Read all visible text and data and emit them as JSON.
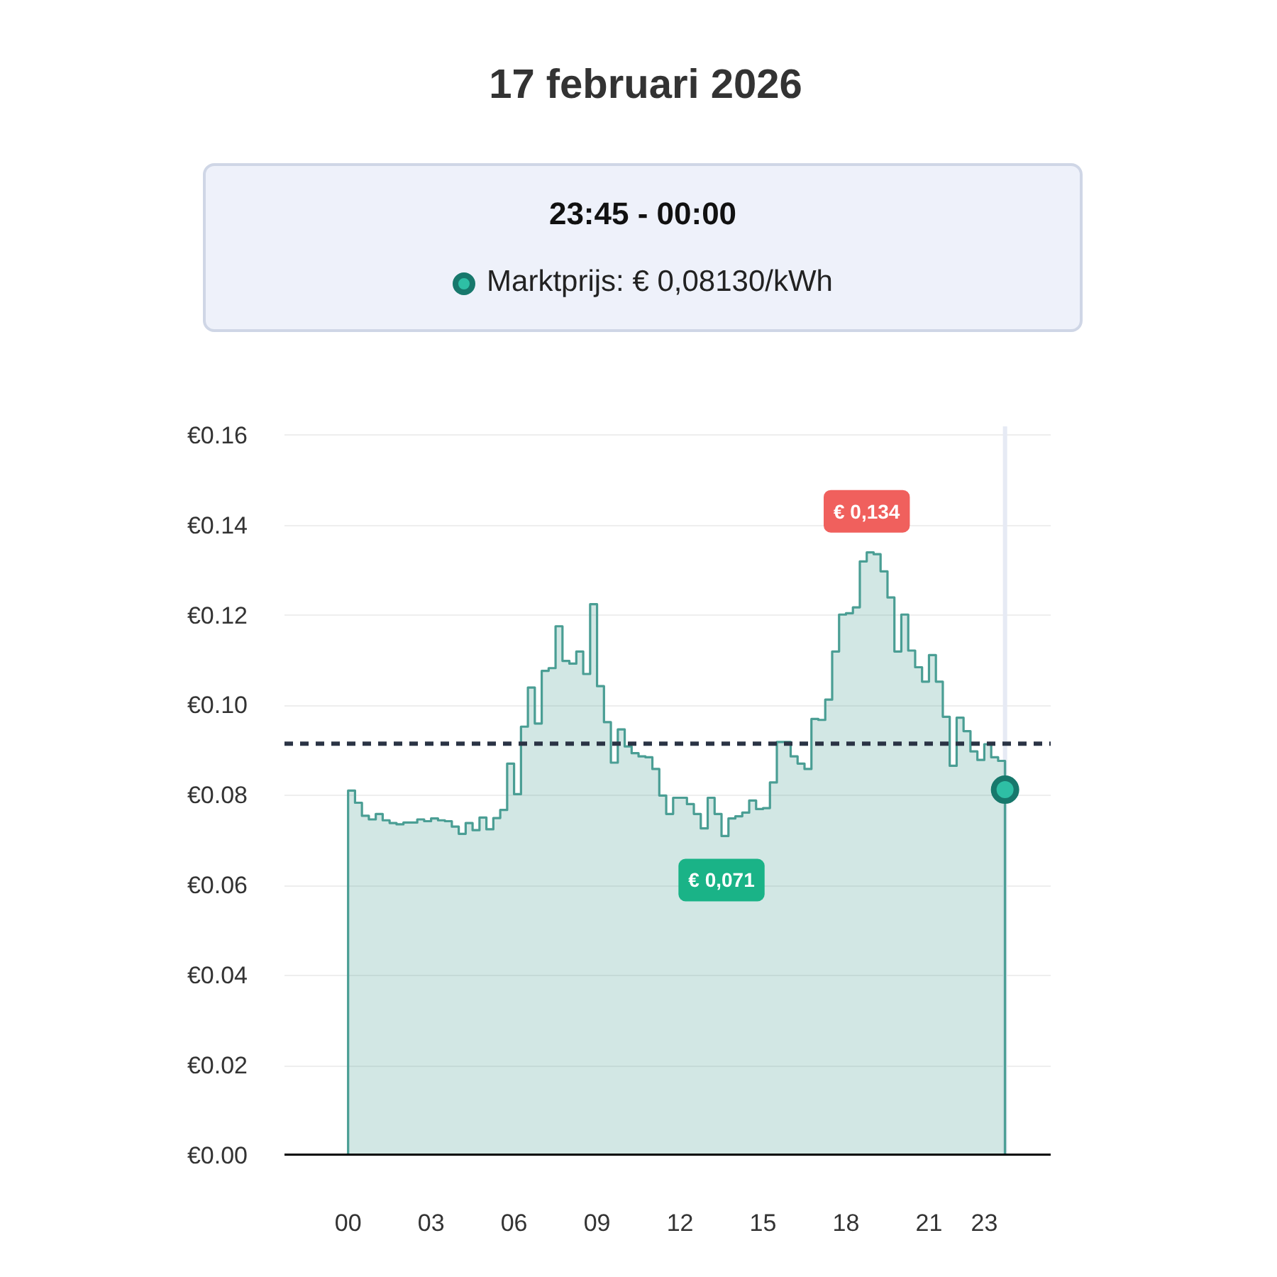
{
  "chart_data": {
    "type": "area",
    "title": "17 februari 2026",
    "subtitle": "23:45 - 00:00",
    "annotations": [
      "Marktprijs: € 0,08130/kWh",
      {
        "text": "€ 0,134",
        "x": 18.75,
        "y": 0.134
      },
      {
        "text": "€ 0,071",
        "x": 13.5,
        "y": 0.071
      }
    ],
    "x": [
      0,
      0.25,
      0.5,
      0.75,
      1,
      1.25,
      1.5,
      1.75,
      2,
      2.25,
      2.5,
      2.75,
      3,
      3.25,
      3.5,
      3.75,
      4,
      4.25,
      4.5,
      4.75,
      5,
      5.25,
      5.5,
      5.75,
      6,
      6.25,
      6.5,
      6.75,
      7,
      7.25,
      7.5,
      7.75,
      8,
      8.25,
      8.5,
      8.75,
      9,
      9.25,
      9.5,
      9.75,
      10,
      10.25,
      10.5,
      10.75,
      11,
      11.25,
      11.5,
      11.75,
      12,
      12.25,
      12.5,
      12.75,
      13,
      13.25,
      13.5,
      13.75,
      14,
      14.25,
      14.5,
      14.75,
      15,
      15.25,
      15.5,
      15.75,
      16,
      16.25,
      16.5,
      16.75,
      17,
      17.25,
      17.5,
      17.75,
      18,
      18.25,
      18.5,
      18.75,
      19,
      19.25,
      19.5,
      19.75,
      20,
      20.25,
      20.5,
      20.75,
      21,
      21.25,
      21.5,
      21.75,
      22,
      22.25,
      22.5,
      22.75,
      23,
      23.25,
      23.5,
      23.75
    ],
    "series": [
      {
        "color": "#4a9e94",
        "values": [
          0.0811,
          0.0784,
          0.0755,
          0.0747,
          0.0759,
          0.0745,
          0.0739,
          0.0736,
          0.074,
          0.074,
          0.0747,
          0.0743,
          0.0749,
          0.0745,
          0.0743,
          0.0731,
          0.0715,
          0.0739,
          0.0723,
          0.0751,
          0.0725,
          0.075,
          0.0768,
          0.0871,
          0.0803,
          0.0953,
          0.104,
          0.096,
          0.1077,
          0.1083,
          0.1176,
          0.1099,
          0.1093,
          0.112,
          0.107,
          0.1225,
          0.1043,
          0.0963,
          0.0873,
          0.0947,
          0.0909,
          0.0894,
          0.0887,
          0.0885,
          0.0859,
          0.08,
          0.0759,
          0.0795,
          0.0795,
          0.0781,
          0.0759,
          0.0727,
          0.0795,
          0.0759,
          0.071,
          0.0749,
          0.0754,
          0.0762,
          0.0789,
          0.077,
          0.0772,
          0.0829,
          0.0919,
          0.0919,
          0.0887,
          0.0871,
          0.0859,
          0.097,
          0.0968,
          0.1013,
          0.112,
          0.1202,
          0.1205,
          0.1218,
          0.132,
          0.134,
          0.1336,
          0.1298,
          0.124,
          0.112,
          0.1202,
          0.1122,
          0.1085,
          0.1053,
          0.1112,
          0.1053,
          0.0975,
          0.0866,
          0.0973,
          0.0943,
          0.0898,
          0.0879,
          0.0914,
          0.0885,
          0.0877,
          0.0813
        ]
      },
      {
        "type": "scatter",
        "marker": "circle",
        "color": "#2ebfa5",
        "x": [
          23.75
        ],
        "values": [
          0.0813
        ]
      }
    ],
    "xlim": [
      -2.3,
      25.4
    ],
    "xticks": [
      {
        "value": 0,
        "label": "00"
      },
      {
        "value": 3,
        "label": "03"
      },
      {
        "value": 6,
        "label": "06"
      },
      {
        "value": 9,
        "label": "09"
      },
      {
        "value": 12,
        "label": "12"
      },
      {
        "value": 15,
        "label": "15"
      },
      {
        "value": 18,
        "label": "18"
      },
      {
        "value": 21,
        "label": "21"
      },
      23
    ],
    "ylim": [
      0,
      0.162
    ],
    "yticks": [
      {
        "value": 0,
        "label": "€0.00"
      },
      {
        "value": 0.02,
        "label": "€0.02"
      },
      {
        "value": 0.04,
        "label": "€0.04"
      },
      {
        "value": 0.06,
        "label": "€0.06"
      },
      {
        "value": 0.08,
        "label": "€0.08"
      },
      {
        "value": 0.1,
        "label": "€0.10"
      },
      {
        "value": 0.12,
        "label": "€0.12"
      },
      {
        "value": 0.14,
        "label": "€0.14"
      },
      {
        "value": 0.16,
        "label": "€0.16"
      }
    ],
    "ref_lines": [
      {
        "axis": "y",
        "value": 0.0915,
        "color": "#2b3445",
        "line_style": "dashed"
      },
      {
        "axis": "x",
        "value": 23.75,
        "color": "#e6eaf4",
        "line_style": "solid"
      }
    ],
    "grid": "y"
  }
}
